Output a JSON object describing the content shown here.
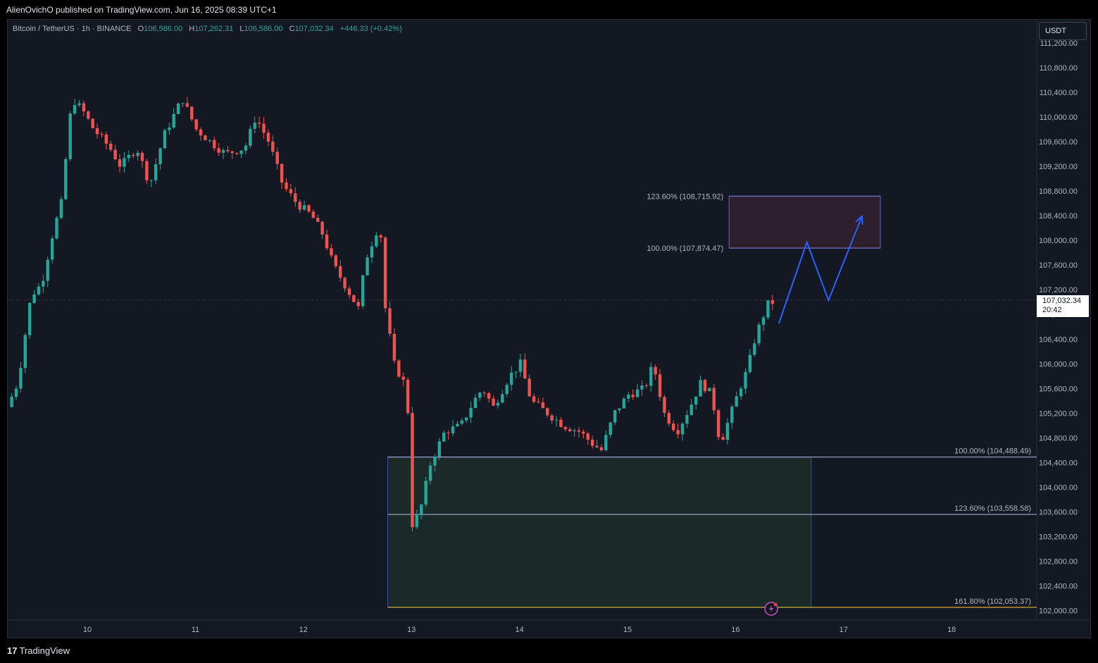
{
  "header": {
    "publisher": "AlienOvichO published on TradingView.com, Jun 16, 2025 08:39 UTC+1"
  },
  "legend": {
    "symbol": "Bitcoin / TetherUS · 1h · BINANCE",
    "open_key": "O",
    "open": "106,586.00",
    "high_key": "H",
    "high": "107,262.31",
    "low_key": "L",
    "low": "106,586.00",
    "close_key": "C",
    "close": "107,032.34",
    "change": "+446.33 (+0.42%)"
  },
  "currency": "USDT",
  "last_price": {
    "price": "107,032.34",
    "countdown": "20:42"
  },
  "footer": {
    "brand_mark": "17",
    "brand": "TradingView"
  },
  "colors": {
    "up": "#26a69a",
    "down": "#ef5350",
    "background": "#141823",
    "arrow": "#2962ff",
    "upper_zone": "#2d1f2b",
    "lower_zone": "#1b2a28",
    "fib_yellow": "#fbd43a"
  },
  "chart_data": {
    "type": "candlestick",
    "timeframe": "1h",
    "ylim": [
      101800,
      111300
    ],
    "y_ticks": [
      "102,000.00",
      "102,400.00",
      "102,800.00",
      "103,200.00",
      "103,600.00",
      "104,000.00",
      "104,400.00",
      "104,800.00",
      "105,200.00",
      "105,600.00",
      "106,000.00",
      "106,400.00",
      "106,800.00",
      "107,200.00",
      "107,600.00",
      "108,000.00",
      "108,400.00",
      "108,800.00",
      "109,200.00",
      "109,600.00",
      "110,000.00",
      "110,400.00",
      "110,800.00",
      "111,200.00"
    ],
    "x_ticks": [
      "10",
      "11",
      "12",
      "13",
      "14",
      "15",
      "16",
      "17",
      "18"
    ],
    "x_range_days": [
      9.27,
      18.85
    ],
    "price_path": [
      [
        9.3,
        105300
      ],
      [
        9.4,
        105700
      ],
      [
        9.52,
        107100
      ],
      [
        9.62,
        107300
      ],
      [
        9.72,
        108100
      ],
      [
        9.8,
        108600
      ],
      [
        9.9,
        110300
      ],
      [
        10.0,
        110100
      ],
      [
        10.1,
        109800
      ],
      [
        10.25,
        109500
      ],
      [
        10.35,
        109200
      ],
      [
        10.5,
        109500
      ],
      [
        10.62,
        108900
      ],
      [
        10.75,
        109700
      ],
      [
        10.92,
        110300
      ],
      [
        11.05,
        109800
      ],
      [
        11.18,
        109600
      ],
      [
        11.32,
        109400
      ],
      [
        11.5,
        109500
      ],
      [
        11.6,
        110000
      ],
      [
        11.72,
        109600
      ],
      [
        11.85,
        108900
      ],
      [
        11.98,
        108600
      ],
      [
        12.12,
        108400
      ],
      [
        12.22,
        108100
      ],
      [
        12.32,
        107600
      ],
      [
        12.45,
        107200
      ],
      [
        12.55,
        106900
      ],
      [
        12.62,
        107700
      ],
      [
        12.75,
        108300
      ],
      [
        12.8,
        106900
      ],
      [
        12.88,
        106000
      ],
      [
        13.0,
        105600
      ],
      [
        13.05,
        103400
      ],
      [
        13.12,
        103600
      ],
      [
        13.22,
        104400
      ],
      [
        13.35,
        104900
      ],
      [
        13.5,
        105000
      ],
      [
        13.62,
        105400
      ],
      [
        13.7,
        105600
      ],
      [
        13.8,
        105300
      ],
      [
        13.95,
        105800
      ],
      [
        14.05,
        106000
      ],
      [
        14.15,
        105400
      ],
      [
        14.3,
        105200
      ],
      [
        14.45,
        105000
      ],
      [
        14.6,
        104900
      ],
      [
        14.72,
        104700
      ],
      [
        14.8,
        104600
      ],
      [
        14.92,
        105200
      ],
      [
        15.05,
        105500
      ],
      [
        15.2,
        105600
      ],
      [
        15.28,
        106000
      ],
      [
        15.38,
        105200
      ],
      [
        15.5,
        104900
      ],
      [
        15.62,
        105300
      ],
      [
        15.72,
        105700
      ],
      [
        15.82,
        105500
      ],
      [
        15.9,
        104700
      ],
      [
        15.98,
        105100
      ],
      [
        16.08,
        105600
      ],
      [
        16.15,
        105900
      ],
      [
        16.22,
        106400
      ],
      [
        16.28,
        106700
      ],
      [
        16.35,
        107000
      ]
    ],
    "projection_arrow": [
      [
        16.4,
        106650
      ],
      [
        16.66,
        107970
      ],
      [
        16.86,
        107030
      ],
      [
        17.17,
        108390
      ]
    ],
    "upper_zone": {
      "from_day": 15.94,
      "to_day": 17.34,
      "low": 107874.47,
      "high": 108715.92,
      "levels": [
        {
          "label": "100.00% (107,874.47)",
          "price": 107874.47
        },
        {
          "label": "123.60% (108,715.92)",
          "price": 108715.92
        }
      ]
    },
    "lower_zone": {
      "from_day": 12.78,
      "to_day": 16.7,
      "low": 102053.37,
      "high": 104488.49,
      "levels": [
        {
          "label": "100.00% (104,488.49)",
          "price": 104488.49
        },
        {
          "label": "123.60% (103,558.58)",
          "price": 103558.58
        },
        {
          "label": "161.80% (102,053.37)",
          "price": 102053.37
        }
      ]
    },
    "current_price": 107032.34
  }
}
